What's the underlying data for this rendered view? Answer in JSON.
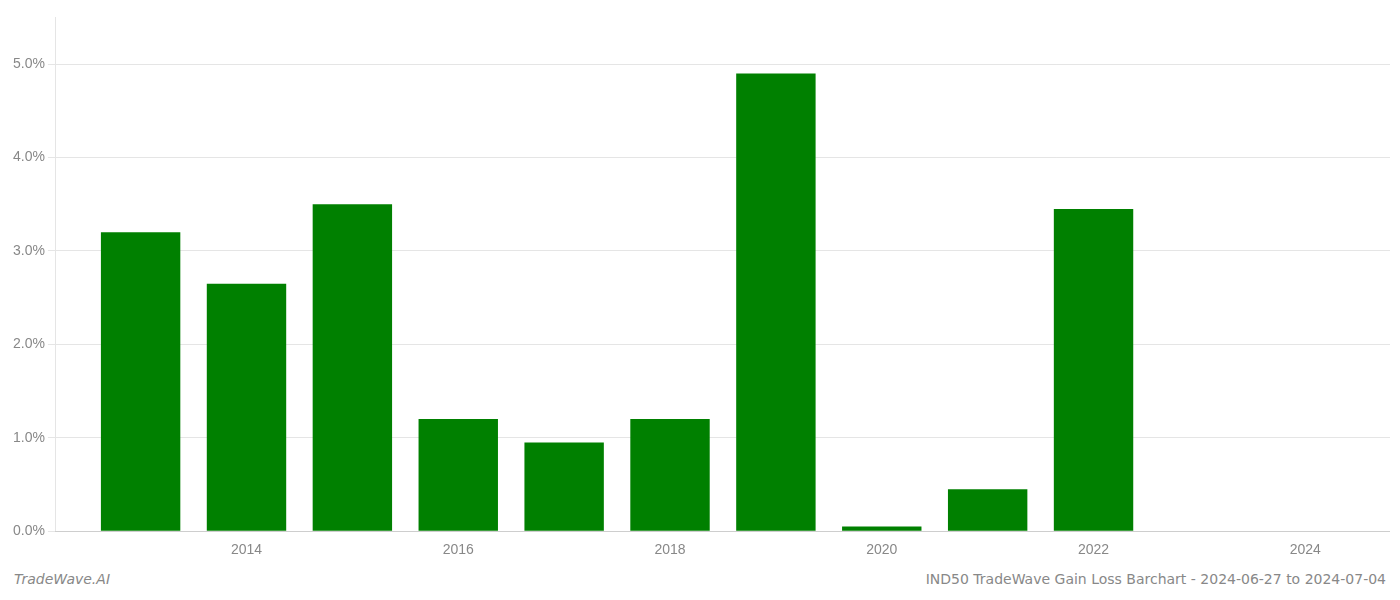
{
  "chart_data": {
    "type": "bar",
    "x": [
      2013,
      2014,
      2015,
      2016,
      2017,
      2018,
      2019,
      2020,
      2021,
      2022,
      2023
    ],
    "values": [
      0.032,
      0.0265,
      0.035,
      0.012,
      0.0095,
      0.012,
      0.049,
      0.0005,
      0.0045,
      0.0345,
      0.0
    ],
    "color": "#008000",
    "xlim": [
      2012.2,
      2024.8
    ],
    "xticks": [
      2014,
      2016,
      2018,
      2020,
      2022,
      2024
    ],
    "ylim": [
      0.0,
      0.055
    ],
    "yticks": [
      {
        "value": 0.0,
        "label": "0.0%"
      },
      {
        "value": 0.01,
        "label": "1.0%"
      },
      {
        "value": 0.02,
        "label": "2.0%"
      },
      {
        "value": 0.03,
        "label": "3.0%"
      },
      {
        "value": 0.04,
        "label": "4.0%"
      },
      {
        "value": 0.05,
        "label": "5.0%"
      }
    ],
    "grid": true,
    "annotations": [
      "TradeWave.AI",
      "IND50 TradeWave Gain Loss Barchart - 2024-06-27 to 2024-07-04"
    ]
  }
}
